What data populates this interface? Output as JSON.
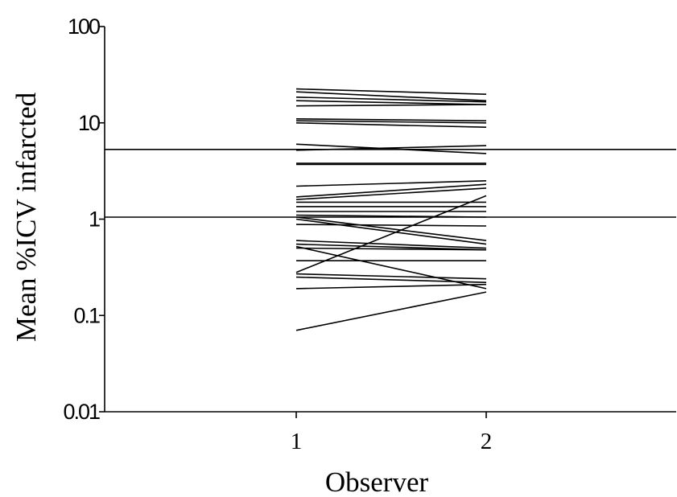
{
  "chart_data": {
    "type": "line",
    "title": "",
    "xlabel": "Observer",
    "ylabel": "Mean %ICV infarcted",
    "y_scale": "log",
    "ylim": [
      0.01,
      100
    ],
    "x_categories": [
      "1",
      "2"
    ],
    "y_ticks": [
      {
        "value": 0.01,
        "label": "0.01"
      },
      {
        "value": 0.1,
        "label": "0.1"
      },
      {
        "value": 1,
        "label": "1"
      },
      {
        "value": 10,
        "label": "10"
      },
      {
        "value": 100,
        "label": "100"
      }
    ],
    "reference_lines": [
      5.3,
      1.05
    ],
    "pairs": [
      [
        22.5,
        19.8
      ],
      [
        21.0,
        17.0
      ],
      [
        18.5,
        16.5
      ],
      [
        17.0,
        15.5
      ],
      [
        15.0,
        15.5
      ],
      [
        11.0,
        10.5
      ],
      [
        10.5,
        10.0
      ],
      [
        10.0,
        9.0
      ],
      [
        6.0,
        4.8
      ],
      [
        5.2,
        5.8
      ],
      [
        3.8,
        3.8
      ],
      [
        3.7,
        3.7
      ],
      [
        2.2,
        2.5
      ],
      [
        1.7,
        2.3
      ],
      [
        1.6,
        2.1
      ],
      [
        1.5,
        1.5
      ],
      [
        1.35,
        1.35
      ],
      [
        1.2,
        1.2
      ],
      [
        1.1,
        1.05
      ],
      [
        1.05,
        0.6
      ],
      [
        1.0,
        0.55
      ],
      [
        0.88,
        0.85
      ],
      [
        0.6,
        0.5
      ],
      [
        0.55,
        0.48
      ],
      [
        0.52,
        0.19
      ],
      [
        0.5,
        0.48
      ],
      [
        0.37,
        0.37
      ],
      [
        0.28,
        1.75
      ],
      [
        0.27,
        0.24
      ],
      [
        0.25,
        0.22
      ],
      [
        0.19,
        0.21
      ],
      [
        0.07,
        0.175
      ]
    ]
  }
}
